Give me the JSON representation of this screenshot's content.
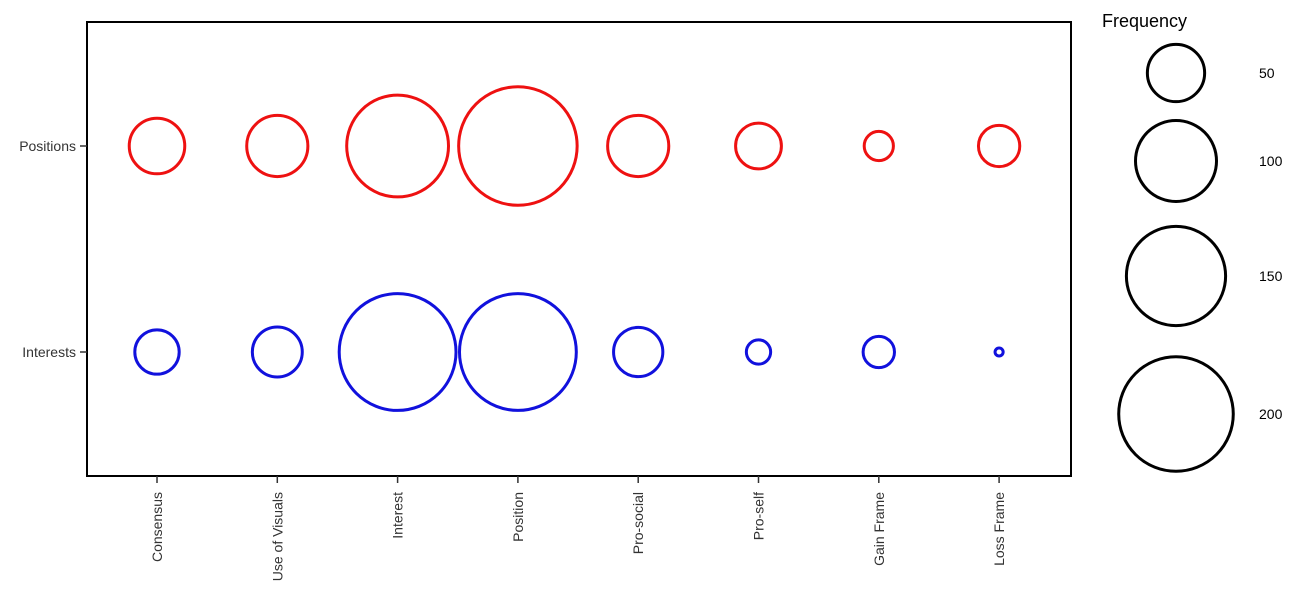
{
  "chart_data": {
    "type": "scatter",
    "subtype": "bubble",
    "title": "",
    "xlabel": "",
    "ylabel": "",
    "categories": [
      "Consensus",
      "Use of Visuals",
      "Interest",
      "Position",
      "Pro-social",
      "Pro-self",
      "Gain Frame",
      "Loss Frame"
    ],
    "rows": [
      "Positions",
      "Interests"
    ],
    "series": [
      {
        "row": "Positions",
        "color": "#ee1111",
        "values": [
          47,
          57,
          158,
          214,
          57,
          32,
          13,
          26
        ]
      },
      {
        "row": "Interests",
        "color": "#1111dd",
        "values": [
          30,
          38,
          208,
          208,
          37,
          9,
          15,
          1
        ]
      }
    ],
    "size_legend": {
      "title": "Frequency",
      "values": [
        50,
        100,
        150,
        200
      ],
      "color": "#000000"
    },
    "grid": false,
    "legend_position": "right"
  }
}
